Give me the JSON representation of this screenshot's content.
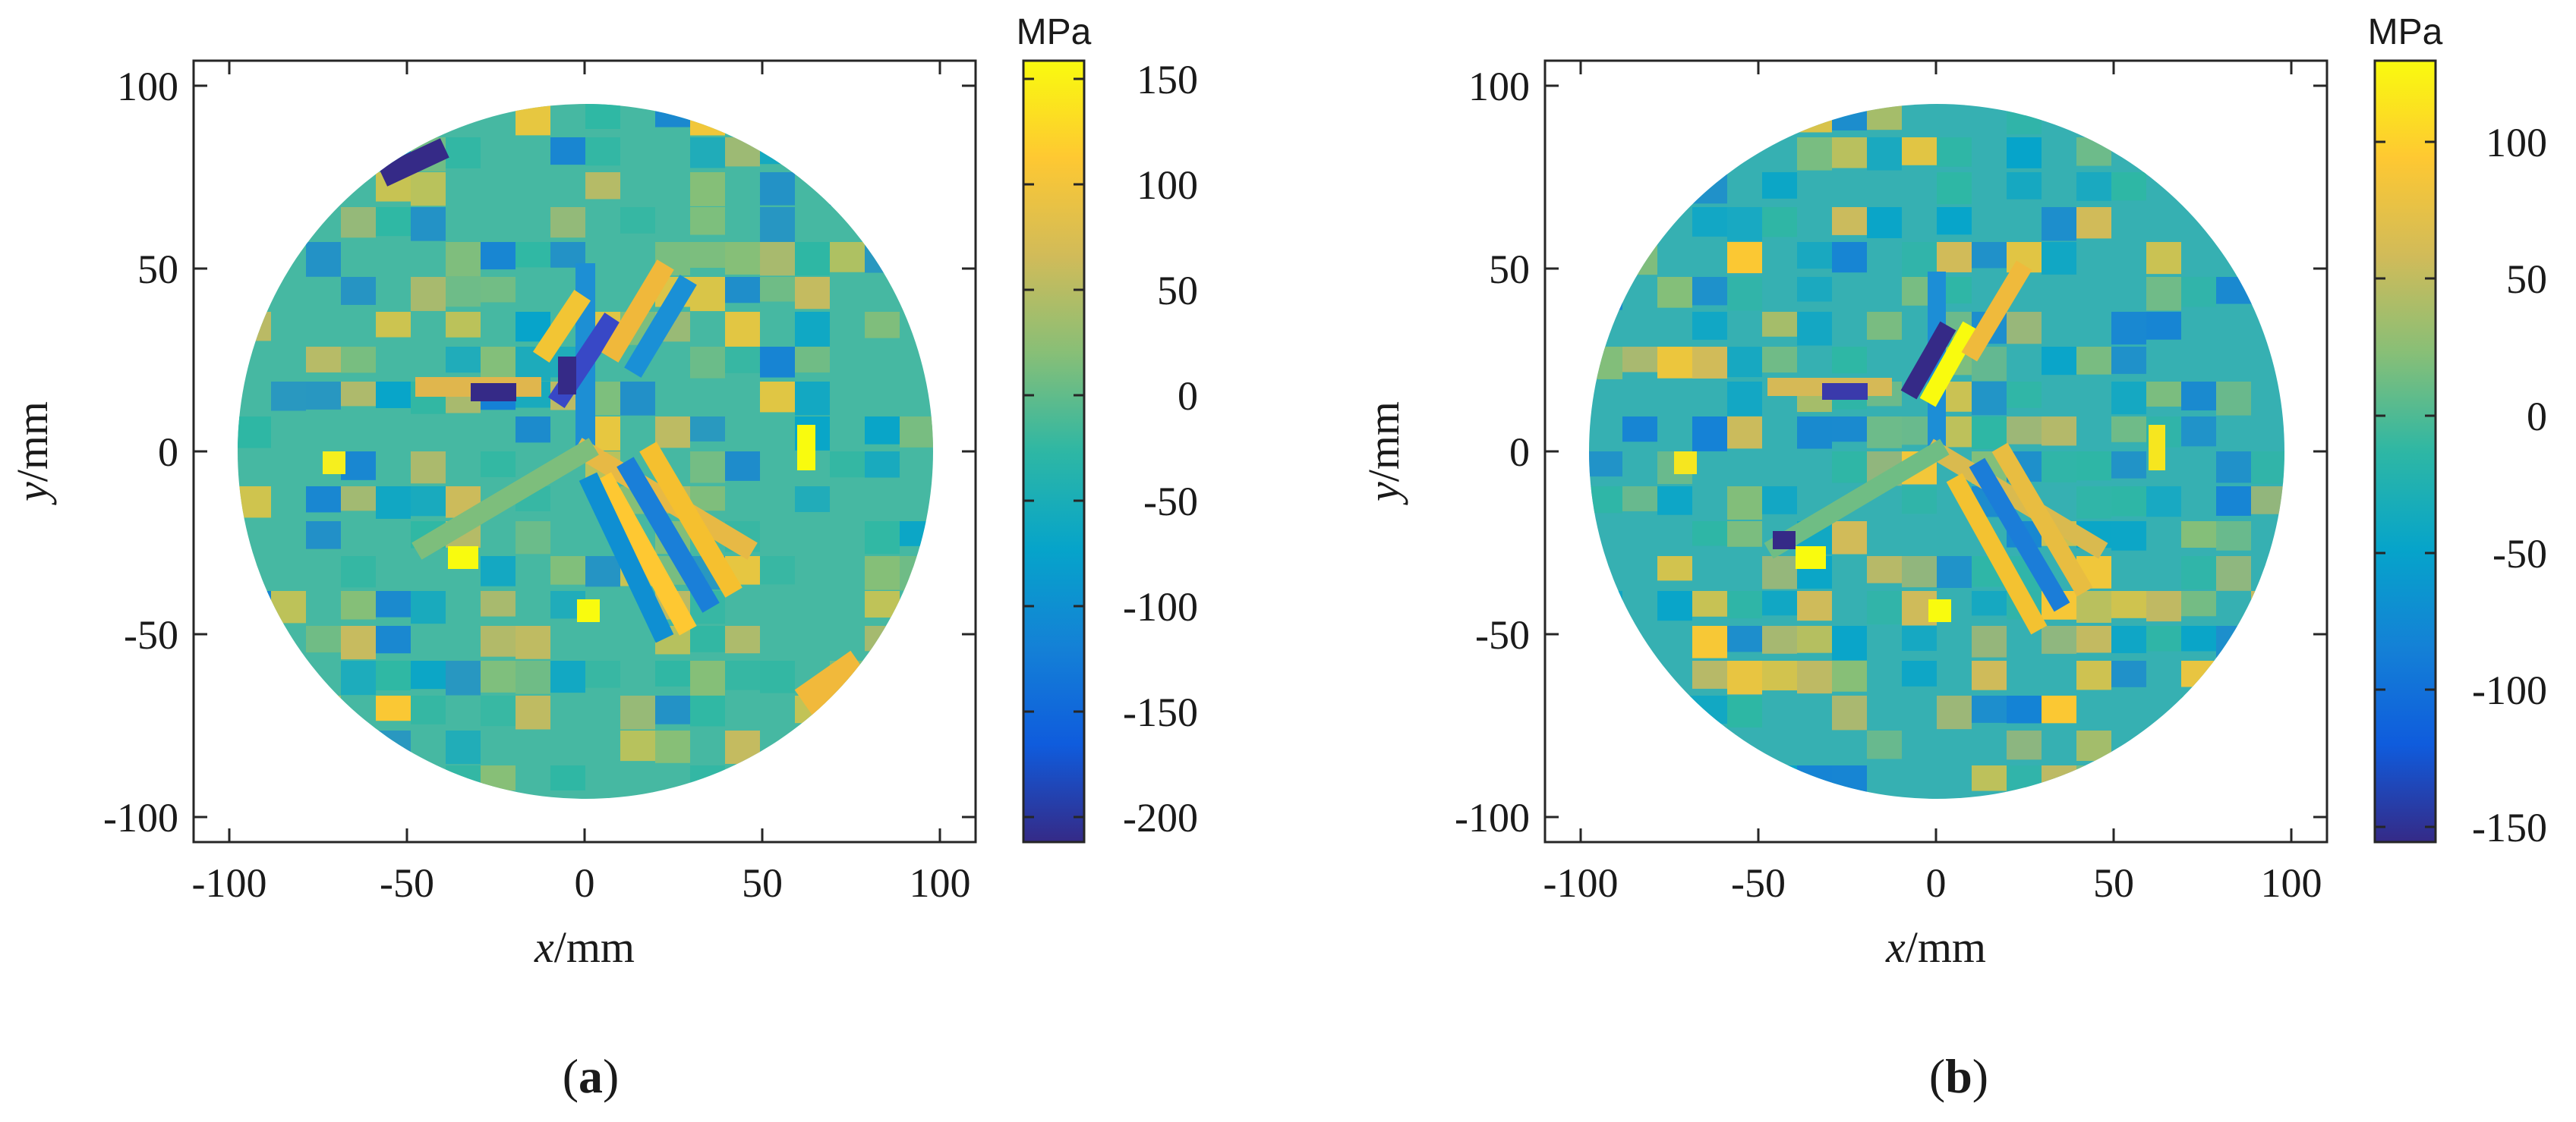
{
  "chart_data": [
    {
      "type": "heatmap",
      "panel": "a",
      "caption": "(a)",
      "caption_letter": "a",
      "title": "",
      "xlabel": "x/mm",
      "xlabel_var": "x",
      "xlabel_unit": "/mm",
      "ylabel": "y/mm",
      "ylabel_var": "y",
      "ylabel_unit": "/mm",
      "xlim": [
        -110,
        110
      ],
      "ylim": [
        -110,
        110
      ],
      "xticks": [
        -100,
        -50,
        0,
        50,
        100
      ],
      "yticks": [
        100,
        50,
        0,
        -50,
        -100
      ],
      "grid": false,
      "domain": "circular disc, radius 96 mm",
      "colorbar": {
        "unit": "MPa",
        "range": [
          -215,
          155
        ],
        "ticks": [
          150,
          100,
          50,
          0,
          -50,
          -100,
          -150,
          -200
        ],
        "colormap": "parula"
      }
    },
    {
      "type": "heatmap",
      "panel": "b",
      "caption": "(b)",
      "caption_letter": "b",
      "title": "",
      "xlabel": "x/mm",
      "xlabel_var": "x",
      "xlabel_unit": "/mm",
      "ylabel": "y/mm",
      "ylabel_var": "y",
      "ylabel_unit": "/mm",
      "xlim": [
        -110,
        110
      ],
      "ylim": [
        -110,
        110
      ],
      "xticks": [
        -100,
        -50,
        0,
        50,
        100
      ],
      "yticks": [
        100,
        50,
        0,
        -50,
        -100
      ],
      "grid": false,
      "domain": "circular disc, radius 96 mm",
      "colorbar": {
        "unit": "MPa",
        "range": [
          -155,
          130
        ],
        "ticks": [
          100,
          50,
          0,
          -50,
          -100,
          -150
        ],
        "colormap": "parula"
      }
    }
  ],
  "colors": {
    "axis": "#262626",
    "parula": [
      "#352a87",
      "#0f5cdd",
      "#1481d6",
      "#06a4ca",
      "#2eb7a4",
      "#87bf77",
      "#d1bb59",
      "#fec832",
      "#f9fb0e"
    ]
  }
}
